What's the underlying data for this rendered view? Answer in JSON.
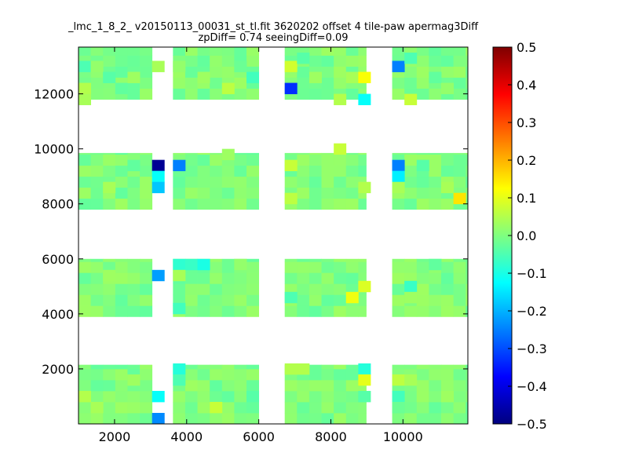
{
  "chart_data": {
    "type": "heatmap",
    "title": "_lmc_1_8_2_ v20150113_00031_st_tl.fit 3620202 offset 4 tile-paw apermag3Diff",
    "subtitle": "zpDiff= 0.74 seeingDiff=0.09",
    "xlabel": "",
    "ylabel": "",
    "xlim": [
      1000,
      11800
    ],
    "ylim": [
      0,
      13700
    ],
    "xticks": [
      2000,
      4000,
      6000,
      8000,
      10000
    ],
    "xtick_labels": [
      "2000",
      "4000",
      "6000",
      "8000",
      "10000"
    ],
    "yticks": [
      2000,
      4000,
      6000,
      8000,
      10000,
      12000
    ],
    "ytick_labels": [
      "2000",
      "4000",
      "6000",
      "8000",
      "10000",
      "12000"
    ],
    "colorbar": {
      "colormap": "jet",
      "range": [
        -0.5,
        0.5
      ],
      "ticks": [
        0.5,
        0.4,
        0.3,
        0.2,
        0.1,
        0.0,
        -0.1,
        -0.2,
        -0.3,
        -0.4,
        -0.5
      ],
      "tick_labels": [
        "0.5",
        "0.4",
        "0.3",
        "0.2",
        "0.1",
        "0.0",
        "−0.1",
        "−0.2",
        "−0.3",
        "−0.4",
        "−0.5"
      ]
    },
    "grid": false,
    "cell_size": [
      340,
      400
    ],
    "chip_columns_x": [
      [
        1000,
        3040
      ],
      [
        3620,
        6000
      ],
      [
        6720,
        8980
      ],
      [
        9700,
        11800
      ]
    ],
    "chip_rows_y": [
      [
        0,
        2150
      ],
      [
        3900,
        6000
      ],
      [
        7800,
        9850
      ],
      [
        11800,
        13700
      ]
    ],
    "default_value": 0.0,
    "cells": [
      {
        "x": 1170,
        "y": 13000,
        "value": -0.05
      },
      {
        "x": 1510,
        "y": 13000,
        "value": 0.02
      },
      {
        "x": 1850,
        "y": 12600,
        "value": -0.04
      },
      {
        "x": 2190,
        "y": 12200,
        "value": -0.03
      },
      {
        "x": 1170,
        "y": 12200,
        "value": 0.05
      },
      {
        "x": 1170,
        "y": 11800,
        "value": 0.04
      },
      {
        "x": 2530,
        "y": 12600,
        "value": 0.03
      },
      {
        "x": 3210,
        "y": 13000,
        "value": 0.04
      },
      {
        "x": 3790,
        "y": 13000,
        "value": 0.02
      },
      {
        "x": 4470,
        "y": 12600,
        "value": 0.03
      },
      {
        "x": 5150,
        "y": 12200,
        "value": 0.06
      },
      {
        "x": 5830,
        "y": 12600,
        "value": -0.06
      },
      {
        "x": 5490,
        "y": 13000,
        "value": -0.02
      },
      {
        "x": 6890,
        "y": 13000,
        "value": 0.08
      },
      {
        "x": 7230,
        "y": 13300,
        "value": -0.04
      },
      {
        "x": 6890,
        "y": 12200,
        "value": -0.33
      },
      {
        "x": 7570,
        "y": 12600,
        "value": 0.03
      },
      {
        "x": 8250,
        "y": 11800,
        "value": 0.05
      },
      {
        "x": 8590,
        "y": 12600,
        "value": 0.04
      },
      {
        "x": 8930,
        "y": 12600,
        "value": 0.12
      },
      {
        "x": 8930,
        "y": 11800,
        "value": -0.12
      },
      {
        "x": 9870,
        "y": 13000,
        "value": -0.25
      },
      {
        "x": 10210,
        "y": 13300,
        "value": -0.05
      },
      {
        "x": 10210,
        "y": 11800,
        "value": 0.07
      },
      {
        "x": 10890,
        "y": 12600,
        "value": -0.03
      },
      {
        "x": 11230,
        "y": 12200,
        "value": 0.02
      },
      {
        "x": 8250,
        "y": 10000,
        "value": 0.07
      },
      {
        "x": 3210,
        "y": 9400,
        "value": -0.48
      },
      {
        "x": 3210,
        "y": 9000,
        "value": -0.12
      },
      {
        "x": 3210,
        "y": 8600,
        "value": -0.18
      },
      {
        "x": 3790,
        "y": 9400,
        "value": -0.25
      },
      {
        "x": 5150,
        "y": 9800,
        "value": 0.03
      },
      {
        "x": 6890,
        "y": 9400,
        "value": 0.07
      },
      {
        "x": 6890,
        "y": 8200,
        "value": 0.06
      },
      {
        "x": 8930,
        "y": 8600,
        "value": 0.05
      },
      {
        "x": 9870,
        "y": 9400,
        "value": -0.25
      },
      {
        "x": 9870,
        "y": 9000,
        "value": -0.14
      },
      {
        "x": 9870,
        "y": 8600,
        "value": 0.04
      },
      {
        "x": 10550,
        "y": 9400,
        "value": -0.04
      },
      {
        "x": 11570,
        "y": 8200,
        "value": 0.15
      },
      {
        "x": 11230,
        "y": 8600,
        "value": 0.04
      },
      {
        "x": 1850,
        "y": 8600,
        "value": 0.04
      },
      {
        "x": 2530,
        "y": 9400,
        "value": -0.03
      },
      {
        "x": 3210,
        "y": 5400,
        "value": -0.22
      },
      {
        "x": 3790,
        "y": 5800,
        "value": -0.08
      },
      {
        "x": 4130,
        "y": 5800,
        "value": -0.07
      },
      {
        "x": 4470,
        "y": 5800,
        "value": -0.1
      },
      {
        "x": 5490,
        "y": 5800,
        "value": 0.02
      },
      {
        "x": 3790,
        "y": 5400,
        "value": 0.04
      },
      {
        "x": 3790,
        "y": 4200,
        "value": -0.06
      },
      {
        "x": 8590,
        "y": 4600,
        "value": 0.11
      },
      {
        "x": 8930,
        "y": 5000,
        "value": 0.09
      },
      {
        "x": 6890,
        "y": 4600,
        "value": -0.05
      },
      {
        "x": 10210,
        "y": 5000,
        "value": -0.07
      },
      {
        "x": 10210,
        "y": 4600,
        "value": 0.03
      },
      {
        "x": 10890,
        "y": 5800,
        "value": -0.03
      },
      {
        "x": 1850,
        "y": 5400,
        "value": 0.03
      },
      {
        "x": 3790,
        "y": 2000,
        "value": -0.09
      },
      {
        "x": 3790,
        "y": 1600,
        "value": -0.05
      },
      {
        "x": 3210,
        "y": 1000,
        "value": -0.12
      },
      {
        "x": 3210,
        "y": 200,
        "value": -0.24
      },
      {
        "x": 4810,
        "y": 600,
        "value": 0.07
      },
      {
        "x": 5830,
        "y": 1000,
        "value": -0.04
      },
      {
        "x": 6890,
        "y": 2000,
        "value": 0.05
      },
      {
        "x": 7230,
        "y": 2000,
        "value": 0.05
      },
      {
        "x": 8930,
        "y": 2000,
        "value": -0.09
      },
      {
        "x": 8930,
        "y": 1600,
        "value": 0.1
      },
      {
        "x": 8930,
        "y": 1000,
        "value": -0.04
      },
      {
        "x": 9870,
        "y": 1600,
        "value": 0.06
      },
      {
        "x": 9870,
        "y": 1000,
        "value": -0.06
      },
      {
        "x": 9870,
        "y": 600,
        "value": -0.02
      },
      {
        "x": 10210,
        "y": 1600,
        "value": 0.04
      },
      {
        "x": 11230,
        "y": 1000,
        "value": 0.03
      },
      {
        "x": 1170,
        "y": 1000,
        "value": 0.05
      },
      {
        "x": 1510,
        "y": 600,
        "value": 0.04
      },
      {
        "x": 2530,
        "y": 1600,
        "value": 0.03
      }
    ]
  }
}
